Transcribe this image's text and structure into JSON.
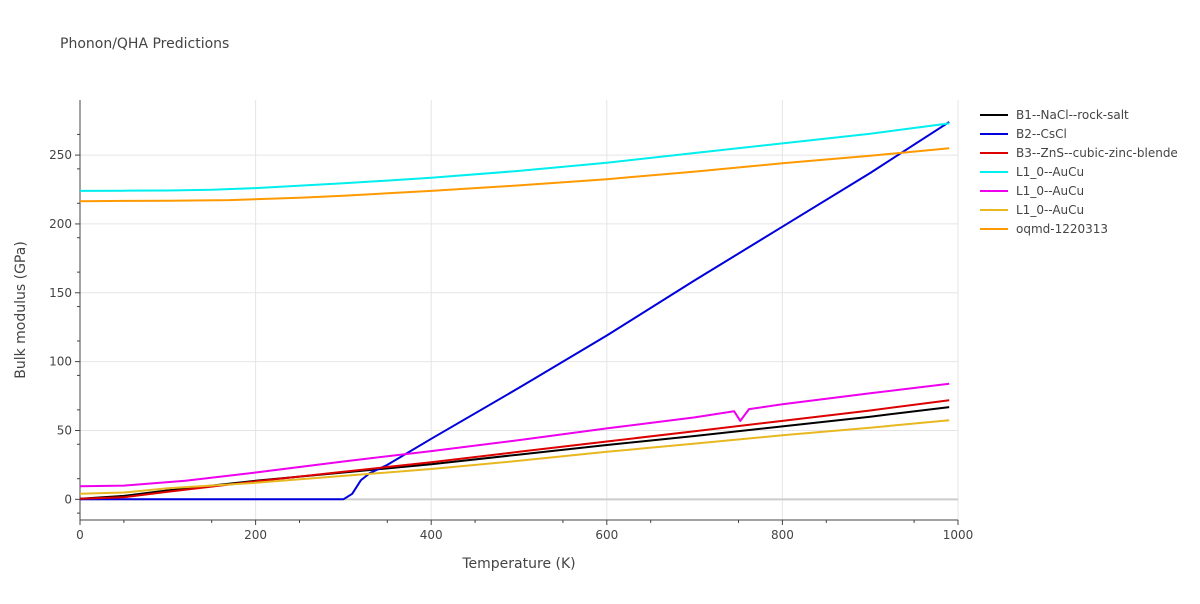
{
  "chart_data": {
    "type": "line",
    "title": "Phonon/QHA Predictions",
    "xlabel": "Temperature (K)",
    "ylabel": "Bulk modulus (GPa)",
    "xlim": [
      0,
      1000
    ],
    "ylim": [
      -15,
      290
    ],
    "xticks": [
      0,
      200,
      400,
      600,
      800,
      1000
    ],
    "yticks": [
      0,
      50,
      100,
      150,
      200,
      250
    ],
    "grid": true,
    "legend_position": "right",
    "series": [
      {
        "name": "B1--NaCl--rock-salt",
        "color": "#000000",
        "x": [
          0,
          50,
          100,
          200,
          300,
          400,
          500,
          600,
          700,
          800,
          900,
          990
        ],
        "y": [
          0.5,
          2.5,
          6.5,
          13.5,
          19.5,
          25.5,
          32.5,
          39.5,
          46,
          53,
          60,
          67
        ]
      },
      {
        "name": "B2--CsCl",
        "color": "#0000dd",
        "x": [
          0,
          300,
          310,
          320,
          330,
          350,
          400,
          500,
          600,
          700,
          800,
          900,
          990
        ],
        "y": [
          0,
          0,
          4,
          14,
          19,
          25,
          44,
          81,
          119,
          159,
          198,
          237,
          274
        ]
      },
      {
        "name": "B3--ZnS--cubic-zinc-blende",
        "color": "#dd0000",
        "x": [
          0,
          50,
          100,
          200,
          300,
          400,
          500,
          600,
          700,
          800,
          900,
          990
        ],
        "y": [
          0.5,
          1.5,
          5.5,
          13,
          20,
          27,
          34.5,
          42,
          49.5,
          57,
          64.5,
          72
        ]
      },
      {
        "name": "L1_0--AuCu",
        "color": "#00eeee",
        "x": [
          0,
          50,
          100,
          150,
          200,
          300,
          400,
          500,
          600,
          700,
          800,
          900,
          990
        ],
        "y": [
          224,
          224.1,
          224.3,
          224.8,
          226,
          229.5,
          233.5,
          238.5,
          244.5,
          251.5,
          258.5,
          265.5,
          273
        ]
      },
      {
        "name": "L1_0--AuCu",
        "color": "#ee00ee",
        "x": [
          0,
          50,
          120,
          200,
          300,
          400,
          500,
          600,
          700,
          745,
          752,
          762,
          800,
          900,
          990
        ],
        "y": [
          9.5,
          10,
          13.5,
          19.5,
          27.5,
          35,
          43,
          51.5,
          59.5,
          64,
          57,
          65.5,
          69,
          77,
          84
        ]
      },
      {
        "name": "L1_0--AuCu",
        "color": "#e8b820",
        "x": [
          0,
          50,
          100,
          200,
          300,
          400,
          500,
          600,
          700,
          800,
          900,
          990
        ],
        "y": [
          4,
          5,
          8,
          12,
          17,
          22,
          28,
          34.5,
          40.5,
          46.5,
          52,
          57.5
        ]
      },
      {
        "name": "oqmd-1220313",
        "color": "#ff9900",
        "x": [
          0,
          50,
          100,
          170,
          250,
          300,
          400,
          500,
          600,
          700,
          800,
          900,
          990
        ],
        "y": [
          216.5,
          216.7,
          216.9,
          217.3,
          219,
          220.5,
          224,
          228,
          232.5,
          238,
          244,
          249.5,
          255
        ]
      }
    ]
  }
}
